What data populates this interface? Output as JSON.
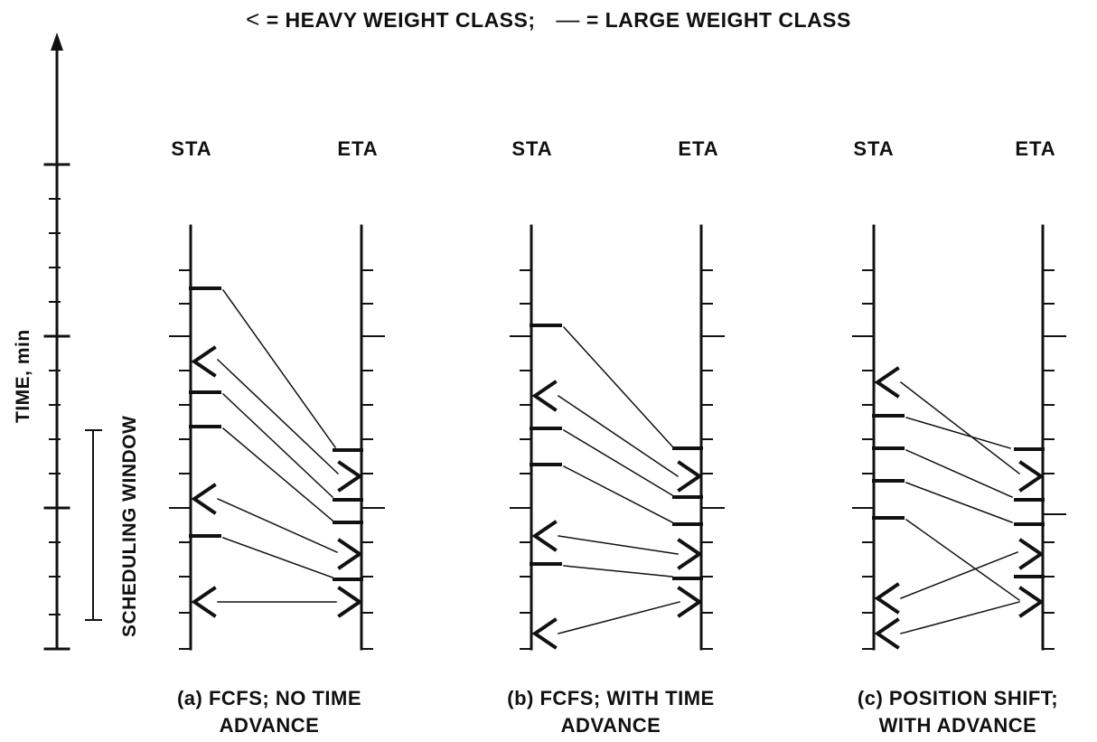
{
  "legend": {
    "heavy_symbol": "<",
    "heavy_text": "= HEAVY WEIGHT CLASS;",
    "large_symbol": "—",
    "large_text": "= LARGE WEIGHT CLASS"
  },
  "axis": {
    "time_label": "TIME, min",
    "window_label": "SCHEDULING WINDOW"
  },
  "panels": [
    {
      "sta_label": "STA",
      "eta_label": "ETA",
      "caption_line1": "(a) FCFS; NO TIME",
      "caption_line2": "ADVANCE"
    },
    {
      "sta_label": "STA",
      "eta_label": "ETA",
      "caption_line1": "(b) FCFS; WITH TIME",
      "caption_line2": "ADVANCE"
    },
    {
      "sta_label": "STA",
      "eta_label": "ETA",
      "caption_line1": "(c) POSITION SHIFT;",
      "caption_line2": "WITH ADVANCE"
    }
  ]
}
